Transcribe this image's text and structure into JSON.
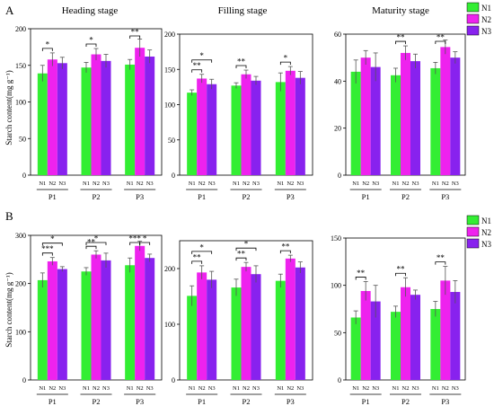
{
  "panel_labels": [
    "A",
    "B"
  ],
  "y_axis_label": "Starch content(mg g⁻¹)",
  "legend": [
    {
      "name": "N1",
      "color": "#33ee33"
    },
    {
      "name": "N2",
      "color": "#ee22ee"
    },
    {
      "name": "N3",
      "color": "#8822ee"
    }
  ],
  "chart_data": [
    {
      "type": "bar",
      "row": "A",
      "title": "Heading stage",
      "categories": [
        "P1",
        "P2",
        "P3"
      ],
      "series": [
        {
          "name": "N1",
          "values": [
            139,
            147,
            151
          ],
          "errors": [
            11,
            7,
            7
          ]
        },
        {
          "name": "N2",
          "values": [
            158,
            165,
            174
          ],
          "errors": [
            9,
            8,
            12
          ]
        },
        {
          "name": "N3",
          "values": [
            153,
            156,
            162
          ],
          "errors": [
            8,
            9,
            9
          ]
        }
      ],
      "ylim": [
        0,
        200
      ],
      "yticks": [
        0,
        50,
        100,
        150,
        200
      ],
      "significance": [
        {
          "group": 0,
          "from": 0,
          "to": 1,
          "label": "*"
        },
        {
          "group": 1,
          "from": 0,
          "to": 1,
          "label": "*"
        },
        {
          "group": 2,
          "from": 0,
          "to": 1,
          "label": "**"
        }
      ]
    },
    {
      "type": "bar",
      "row": "A",
      "title": "Filling stage",
      "categories": [
        "P1",
        "P2",
        "P3"
      ],
      "series": [
        {
          "name": "N1",
          "values": [
            117,
            127,
            132
          ],
          "errors": [
            4,
            4,
            13
          ]
        },
        {
          "name": "N2",
          "values": [
            137,
            143,
            148
          ],
          "errors": [
            6,
            6,
            6
          ]
        },
        {
          "name": "N3",
          "values": [
            129,
            134,
            138
          ],
          "errors": [
            7,
            6,
            9
          ]
        }
      ],
      "ylim": [
        0,
        200
      ],
      "yticks": [
        0,
        50,
        100,
        150,
        200
      ],
      "significance": [
        {
          "group": 0,
          "from": 0,
          "to": 1,
          "label": "**"
        },
        {
          "group": 0,
          "from": 0,
          "to": 2,
          "label": "*"
        },
        {
          "group": 1,
          "from": 0,
          "to": 1,
          "label": "**"
        },
        {
          "group": 2,
          "from": 0,
          "to": 1,
          "label": "*"
        }
      ]
    },
    {
      "type": "bar",
      "row": "A",
      "title": "Maturity stage",
      "categories": [
        "P1",
        "P2",
        "P3"
      ],
      "series": [
        {
          "name": "N1",
          "values": [
            44,
            42.5,
            45.5
          ],
          "errors": [
            5,
            3,
            2.5
          ]
        },
        {
          "name": "N2",
          "values": [
            50,
            52,
            54.5
          ],
          "errors": [
            3,
            3,
            3
          ]
        },
        {
          "name": "N3",
          "values": [
            46,
            48.5,
            50
          ],
          "errors": [
            6,
            3,
            2.5
          ]
        }
      ],
      "ylim": [
        0,
        60
      ],
      "yticks": [
        0,
        20,
        40,
        60
      ],
      "significance": [
        {
          "group": 1,
          "from": 0,
          "to": 1,
          "label": "**"
        },
        {
          "group": 2,
          "from": 0,
          "to": 1,
          "label": "**"
        }
      ]
    },
    {
      "type": "bar",
      "row": "B",
      "title": "",
      "categories": [
        "P1",
        "P2",
        "P3"
      ],
      "series": [
        {
          "name": "N1",
          "values": [
            207,
            225,
            238
          ],
          "errors": [
            15,
            8,
            15
          ]
        },
        {
          "name": "N2",
          "values": [
            246,
            260,
            278
          ],
          "errors": [
            8,
            8,
            10
          ]
        },
        {
          "name": "N3",
          "values": [
            230,
            248,
            253
          ],
          "errors": [
            5,
            15,
            8
          ]
        }
      ],
      "ylim": [
        0,
        300
      ],
      "yticks": [
        0,
        100,
        200,
        300
      ],
      "significance": [
        {
          "group": 0,
          "from": 0,
          "to": 1,
          "label": "***"
        },
        {
          "group": 0,
          "from": 0,
          "to": 2,
          "label": "*"
        },
        {
          "group": 1,
          "from": 0,
          "to": 1,
          "label": "**"
        },
        {
          "group": 1,
          "from": 0,
          "to": 2,
          "label": "*"
        },
        {
          "group": 2,
          "from": 0,
          "to": 1,
          "label": "***"
        },
        {
          "group": 2,
          "from": 1,
          "to": 2,
          "label": "*"
        }
      ]
    },
    {
      "type": "bar",
      "row": "B",
      "title": "",
      "categories": [
        "P1",
        "P2",
        "P3"
      ],
      "series": [
        {
          "name": "N1",
          "values": [
            151,
            166,
            178
          ],
          "errors": [
            18,
            15,
            12
          ]
        },
        {
          "name": "N2",
          "values": [
            193,
            203,
            218
          ],
          "errors": [
            12,
            8,
            6
          ]
        },
        {
          "name": "N3",
          "values": [
            180,
            190,
            202
          ],
          "errors": [
            15,
            15,
            10
          ]
        }
      ],
      "ylim": [
        0,
        250
      ],
      "yticks": [
        0,
        100,
        200
      ],
      "significance": [
        {
          "group": 0,
          "from": 0,
          "to": 1,
          "label": "**"
        },
        {
          "group": 0,
          "from": 0,
          "to": 2,
          "label": "*"
        },
        {
          "group": 1,
          "from": 0,
          "to": 1,
          "label": "**"
        },
        {
          "group": 1,
          "from": 0,
          "to": 2,
          "label": "*"
        },
        {
          "group": 2,
          "from": 0,
          "to": 1,
          "label": "**"
        }
      ]
    },
    {
      "type": "bar",
      "row": "B",
      "title": "",
      "categories": [
        "P1",
        "P2",
        "P3"
      ],
      "series": [
        {
          "name": "N1",
          "values": [
            66,
            72,
            75
          ],
          "errors": [
            7,
            6,
            8
          ]
        },
        {
          "name": "N2",
          "values": [
            94,
            98,
            105
          ],
          "errors": [
            10,
            10,
            15
          ]
        },
        {
          "name": "N3",
          "values": [
            83,
            90,
            93
          ],
          "errors": [
            17,
            5,
            12
          ]
        }
      ],
      "ylim": [
        0,
        150
      ],
      "yticks": [
        0,
        50,
        100,
        150
      ],
      "significance": [
        {
          "group": 0,
          "from": 0,
          "to": 1,
          "label": "**"
        },
        {
          "group": 1,
          "from": 0,
          "to": 1,
          "label": "**"
        },
        {
          "group": 2,
          "from": 0,
          "to": 1,
          "label": "**"
        }
      ]
    }
  ]
}
